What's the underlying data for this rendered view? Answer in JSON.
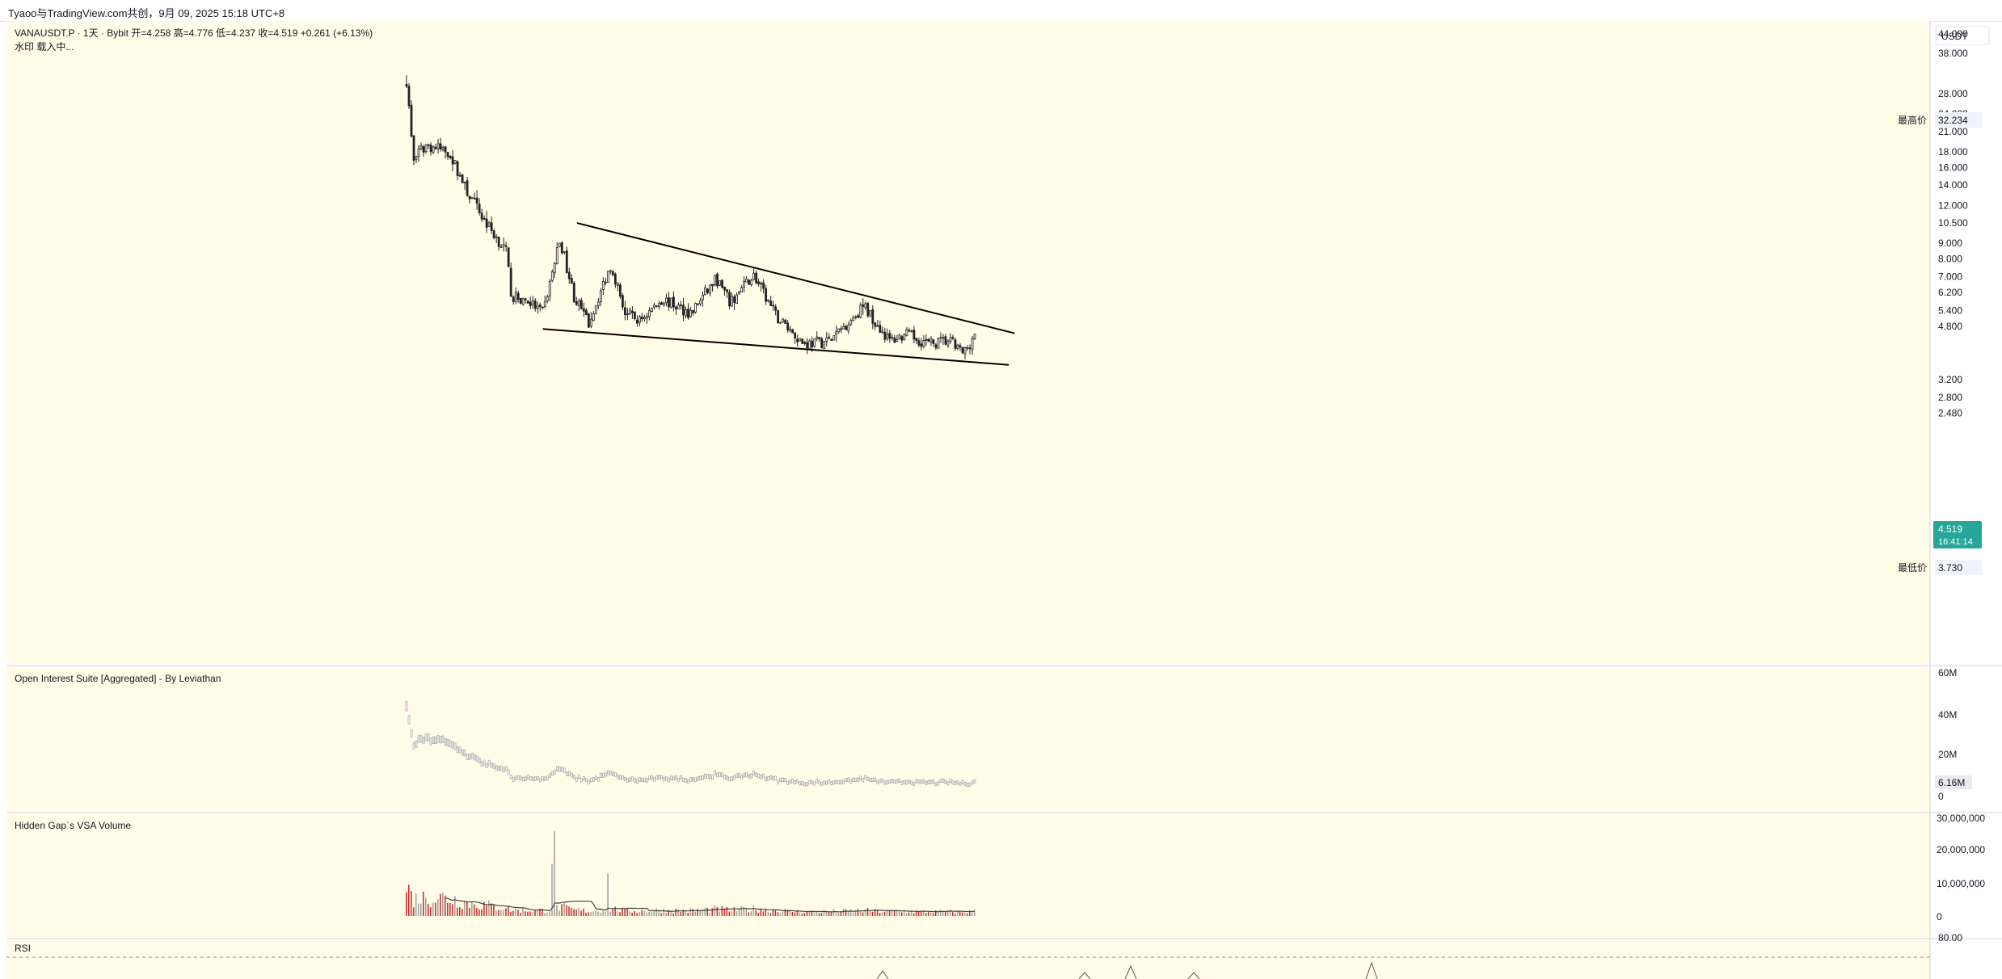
{
  "header": {
    "share_text": "Tyaoo与TradingView.com共创，9月 09, 2025 15:18 UTC+8"
  },
  "legend": {
    "symbol_line": "VANAUSDT.P · 1天 · Bybit  开=4.258  高=4.776  低=4.237  收=4.519  +0.261 (+6.13%)",
    "watermark_line": "水印 载入中..."
  },
  "price_axis": {
    "currency": "USDT",
    "ticks": [
      "44.000",
      "38.000",
      "28.000",
      "24.000",
      "21.000",
      "18.000",
      "16.000",
      "14.000",
      "12.000",
      "10.500",
      "9.000",
      "8.000",
      "7.000",
      "6.200",
      "5.400",
      "4.800",
      "3.200",
      "2.800",
      "2.480"
    ],
    "high_label": "最高价",
    "high_value": "32.234",
    "low_label": "最低价",
    "low_value": "3.730",
    "last_price": "4.519",
    "countdown": "16:41:14"
  },
  "panes": {
    "oi_title": "Open Interest Suite [Aggregated] - By Leviathan",
    "oi_ticks": [
      "60M",
      "40M",
      "20M",
      "0"
    ],
    "oi_last": "6.16M",
    "vsa_title": "Hidden Gap`s VSA Volume",
    "vsa_ticks": [
      "30,000,000",
      "20,000,000",
      "10,000,000",
      "0"
    ],
    "rsi_title": "RSI",
    "rsi_ticks": [
      "80.00"
    ]
  },
  "colors": {
    "pane_bg": "#fffde8",
    "candle": "#222222",
    "up_bar": "#9e9e9e",
    "down_bar": "#c62828",
    "last_price_badge": "#26a69a"
  },
  "chart_data": {
    "type": "candlestick",
    "scale": "log",
    "ylim": [
      2.3,
      50
    ],
    "start_price": 31,
    "all_time_high": 32.234,
    "all_time_low": 3.73,
    "last_close": 4.519,
    "trendlines": [
      {
        "name": "upper",
        "from": {
          "bar_fraction": 0.3,
          "price": 10.5
        },
        "to": {
          "bar_fraction": 1.07,
          "price": 4.55
        }
      },
      {
        "name": "lower",
        "from": {
          "bar_fraction": 0.24,
          "price": 4.7
        },
        "to": {
          "bar_fraction": 1.06,
          "price": 3.58
        }
      }
    ],
    "price_path": [
      {
        "t": 0.0,
        "p": 31.0
      },
      {
        "t": 0.012,
        "p": 17.0
      },
      {
        "t": 0.035,
        "p": 19.0
      },
      {
        "t": 0.075,
        "p": 18.0
      },
      {
        "t": 0.105,
        "p": 13.5
      },
      {
        "t": 0.14,
        "p": 10.5
      },
      {
        "t": 0.175,
        "p": 8.5
      },
      {
        "t": 0.185,
        "p": 6.0
      },
      {
        "t": 0.215,
        "p": 5.8
      },
      {
        "t": 0.24,
        "p": 5.3
      },
      {
        "t": 0.27,
        "p": 9.3
      },
      {
        "t": 0.295,
        "p": 6.0
      },
      {
        "t": 0.32,
        "p": 4.9
      },
      {
        "t": 0.36,
        "p": 7.7
      },
      {
        "t": 0.385,
        "p": 5.3
      },
      {
        "t": 0.41,
        "p": 5.0
      },
      {
        "t": 0.45,
        "p": 5.9
      },
      {
        "t": 0.5,
        "p": 5.3
      },
      {
        "t": 0.545,
        "p": 6.9
      },
      {
        "t": 0.57,
        "p": 5.7
      },
      {
        "t": 0.61,
        "p": 7.1
      },
      {
        "t": 0.65,
        "p": 5.2
      },
      {
        "t": 0.7,
        "p": 4.2
      },
      {
        "t": 0.745,
        "p": 4.3
      },
      {
        "t": 0.805,
        "p": 5.6
      },
      {
        "t": 0.85,
        "p": 4.3
      },
      {
        "t": 0.88,
        "p": 4.5
      },
      {
        "t": 0.92,
        "p": 4.2
      },
      {
        "t": 0.955,
        "p": 4.3
      },
      {
        "t": 0.98,
        "p": 3.9
      },
      {
        "t": 1.0,
        "p": 4.519
      }
    ]
  }
}
